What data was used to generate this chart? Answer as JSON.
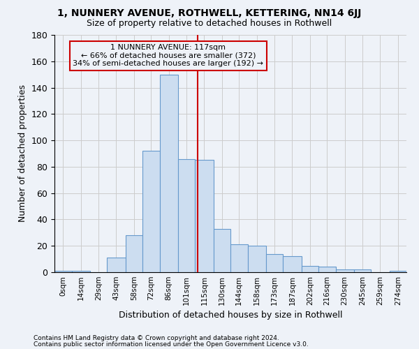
{
  "title": "1, NUNNERY AVENUE, ROTHWELL, KETTERING, NN14 6JJ",
  "subtitle": "Size of property relative to detached houses in Rothwell",
  "xlabel": "Distribution of detached houses by size in Rothwell",
  "ylabel": "Number of detached properties",
  "footnote1": "Contains HM Land Registry data © Crown copyright and database right 2024.",
  "footnote2": "Contains public sector information licensed under the Open Government Licence v3.0.",
  "annotation_line1": "1 NUNNERY AVENUE: 117sqm",
  "annotation_line2": "← 66% of detached houses are smaller (372)",
  "annotation_line3": "34% of semi-detached houses are larger (192) →",
  "bar_color": "#ccddf0",
  "bar_edge_color": "#6699cc",
  "vline_color": "#cc0000",
  "vline_x": 117,
  "bin_edges": [
    0,
    14,
    29,
    43,
    58,
    72,
    86,
    101,
    115,
    130,
    144,
    158,
    173,
    187,
    202,
    216,
    230,
    245,
    259,
    274,
    288
  ],
  "bar_heights": [
    1,
    1,
    0,
    11,
    28,
    92,
    150,
    86,
    85,
    33,
    21,
    20,
    14,
    12,
    5,
    4,
    2,
    2,
    0,
    1
  ],
  "ylim": [
    0,
    180
  ],
  "yticks": [
    0,
    20,
    40,
    60,
    80,
    100,
    120,
    140,
    160,
    180
  ],
  "grid_color": "#cccccc",
  "background_color": "#eef2f8"
}
